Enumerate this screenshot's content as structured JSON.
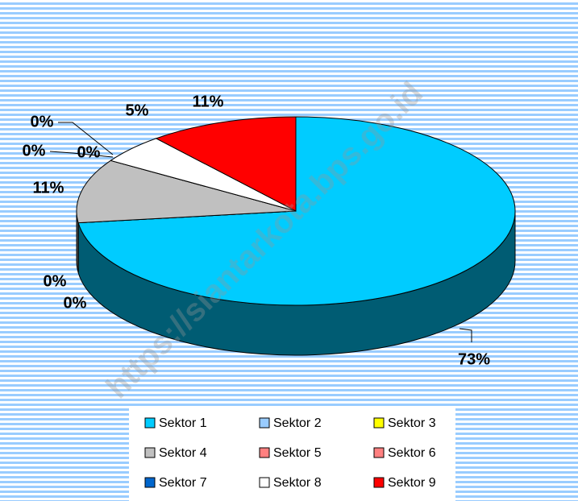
{
  "chart_data": {
    "type": "pie3d",
    "categories": [
      "Sektor 1",
      "Sektor 2",
      "Sektor 3",
      "Sektor 4",
      "Sektor 5",
      "Sektor 6",
      "Sektor 7",
      "Sektor 8",
      "Sektor 9"
    ],
    "values": [
      73,
      0,
      0,
      11,
      0,
      0,
      0,
      5,
      11
    ],
    "value_labels": [
      "73%",
      "0%",
      "0%",
      "11%",
      "0%",
      "0%",
      "0%",
      "5%",
      "11%"
    ],
    "colors": [
      "#00ccff",
      "#99ccff",
      "#ffff00",
      "#c0c0c0",
      "#ff8080",
      "#ff8080",
      "#0066cc",
      "#ffffff",
      "#ff0000"
    ],
    "legend": "bottom",
    "watermark": "https://siantarkota.bps.go.id"
  }
}
